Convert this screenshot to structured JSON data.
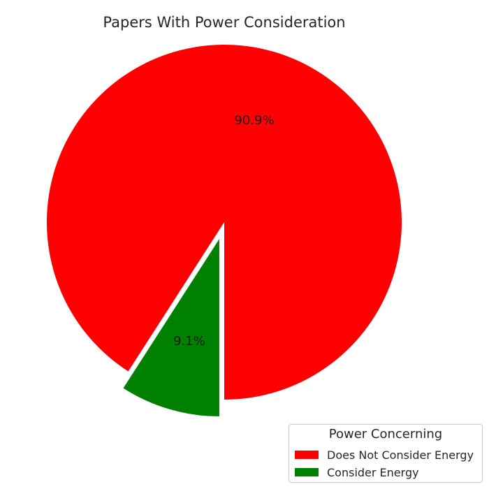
{
  "chart_data": {
    "type": "pie",
    "title": "Papers With Power Consideration",
    "slices": [
      {
        "label": "Does Not Consider Energy",
        "value": 90.9,
        "pct_label": "90.9%",
        "color": "#ff0000",
        "explode": false
      },
      {
        "label": "Consider Energy",
        "value": 9.1,
        "pct_label": "9.1%",
        "color": "#008000",
        "explode": true
      }
    ],
    "legend": {
      "title": "Power Concerning",
      "placement": "bottom-right"
    }
  }
}
